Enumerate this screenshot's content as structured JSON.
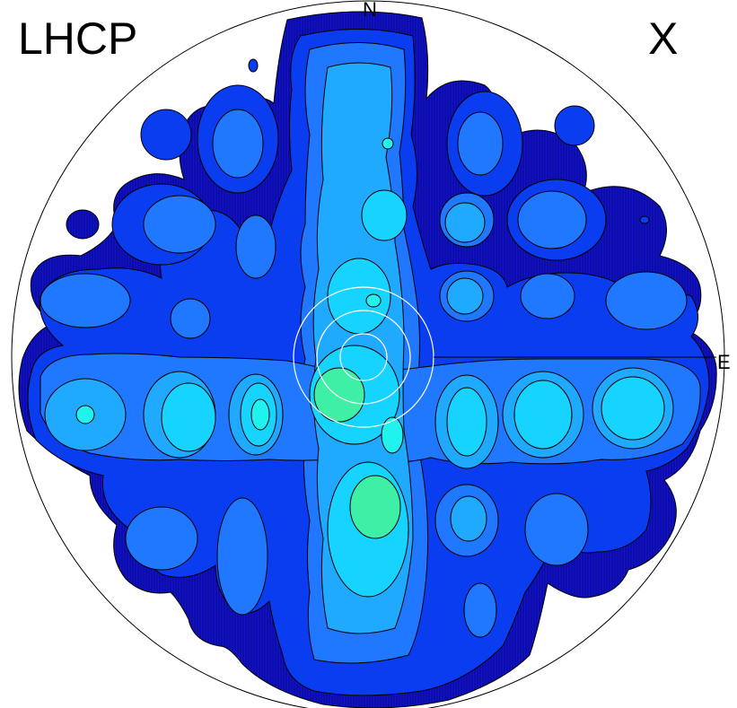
{
  "plot": {
    "polarization": "LHCP",
    "component": "X",
    "directions": {
      "north": "N",
      "east": "E"
    }
  },
  "colors": {
    "level1": "#1a14d6",
    "level2": "#0a3cf0",
    "level3": "#1f78ff",
    "level4": "#1faaff",
    "level5": "#16d3ff",
    "level6": "#20f2ee",
    "level7": "#3ef0a6",
    "outline": "#000000",
    "reference_circles": "#ffffff"
  }
}
